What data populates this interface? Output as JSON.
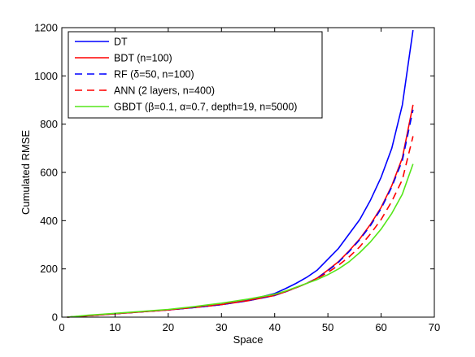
{
  "chart_data": {
    "type": "line",
    "title": "",
    "xlabel": "Space",
    "ylabel": "Cumulated RMSE",
    "xlim": [
      0,
      70
    ],
    "ylim": [
      0,
      1200
    ],
    "xticks": [
      0,
      10,
      20,
      30,
      40,
      50,
      60,
      70
    ],
    "yticks": [
      0,
      200,
      400,
      600,
      800,
      1000,
      1200
    ],
    "xtick_labels": [
      "0",
      "10",
      "20",
      "30",
      "40",
      "50",
      "60",
      "70"
    ],
    "ytick_labels": [
      "0",
      "200",
      "400",
      "600",
      "800",
      "1000",
      "1200"
    ],
    "grid": false,
    "legend_position": "top-left",
    "series": [
      {
        "name": "DT",
        "color": "#0000ff",
        "dash": "solid",
        "x": [
          1,
          5,
          10,
          15,
          20,
          25,
          30,
          35,
          40,
          42,
          44,
          46,
          48,
          50,
          52,
          54,
          56,
          58,
          60,
          62,
          64,
          66
        ],
        "y": [
          0,
          6,
          14,
          22,
          30,
          40,
          52,
          70,
          98,
          118,
          140,
          165,
          195,
          240,
          285,
          345,
          405,
          485,
          580,
          700,
          880,
          1190
        ]
      },
      {
        "name": "BDT (n=100)",
        "color": "#ff0000",
        "dash": "solid",
        "x": [
          1,
          5,
          10,
          15,
          20,
          25,
          30,
          35,
          40,
          42,
          44,
          46,
          48,
          50,
          52,
          54,
          56,
          58,
          60,
          62,
          64,
          66
        ],
        "y": [
          0,
          6,
          14,
          22,
          30,
          40,
          52,
          68,
          90,
          105,
          122,
          140,
          162,
          195,
          230,
          275,
          325,
          385,
          455,
          545,
          660,
          880
        ]
      },
      {
        "name": "RF (δ=50, n=100)",
        "color": "#0000ff",
        "dash": "dashed",
        "x": [
          1,
          5,
          10,
          15,
          20,
          25,
          30,
          35,
          40,
          42,
          44,
          46,
          48,
          50,
          52,
          54,
          56,
          58,
          60,
          62,
          64,
          66
        ],
        "y": [
          0,
          6,
          14,
          22,
          30,
          40,
          52,
          68,
          90,
          105,
          122,
          140,
          162,
          192,
          228,
          272,
          322,
          380,
          450,
          540,
          650,
          860
        ]
      },
      {
        "name": "ANN (2 layers, n=400)",
        "color": "#ff0000",
        "dash": "dashed",
        "x": [
          1,
          5,
          10,
          15,
          20,
          25,
          30,
          35,
          40,
          42,
          44,
          46,
          48,
          50,
          52,
          54,
          56,
          58,
          60,
          62,
          64,
          66
        ],
        "y": [
          0,
          6,
          14,
          22,
          30,
          42,
          54,
          70,
          92,
          106,
          122,
          140,
          160,
          185,
          215,
          250,
          292,
          345,
          405,
          480,
          570,
          750
        ]
      },
      {
        "name": "GBDT (β=0.1, α=0.7, depth=19, n=5000)",
        "color": "#55e61a",
        "dash": "solid",
        "x": [
          1,
          5,
          10,
          15,
          20,
          25,
          30,
          35,
          40,
          42,
          44,
          46,
          48,
          50,
          52,
          54,
          56,
          58,
          60,
          62,
          64,
          66
        ],
        "y": [
          0,
          8,
          16,
          24,
          32,
          44,
          58,
          75,
          95,
          108,
          124,
          140,
          156,
          176,
          200,
          230,
          268,
          312,
          365,
          430,
          510,
          635
        ]
      }
    ]
  }
}
